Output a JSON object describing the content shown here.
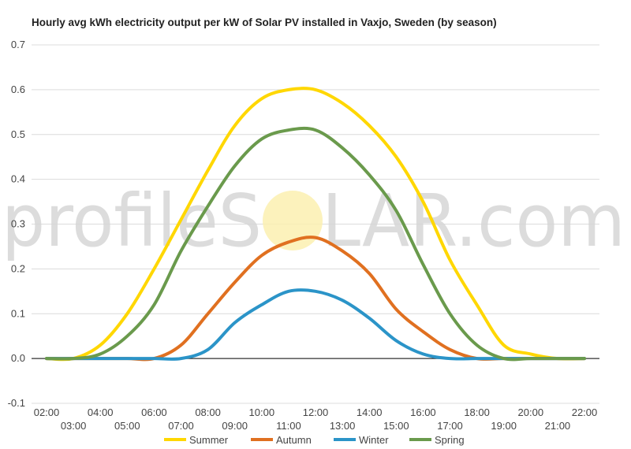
{
  "watermark": {
    "part1": "profileS",
    "part2": "LAR.com"
  },
  "chart_data": {
    "type": "line",
    "title": "Hourly avg kWh electricity output per kW of Solar PV installed in Vaxjo, Sweden (by season)",
    "xlabel": "",
    "ylabel": "",
    "ylim": [
      -0.1,
      0.7
    ],
    "yticks": [
      -0.1,
      0.0,
      0.1,
      0.2,
      0.3,
      0.4,
      0.5,
      0.6,
      0.7
    ],
    "grid": true,
    "legend": "bottom",
    "x": [
      "02:00",
      "03:00",
      "04:00",
      "05:00",
      "06:00",
      "07:00",
      "08:00",
      "09:00",
      "10:00",
      "11:00",
      "12:00",
      "13:00",
      "14:00",
      "15:00",
      "16:00",
      "17:00",
      "18:00",
      "19:00",
      "20:00",
      "21:00",
      "22:00"
    ],
    "series": [
      {
        "name": "Summer",
        "color": "#FFD700",
        "values": [
          0.0,
          0.0,
          0.03,
          0.1,
          0.2,
          0.31,
          0.42,
          0.52,
          0.58,
          0.6,
          0.6,
          0.57,
          0.52,
          0.45,
          0.35,
          0.22,
          0.12,
          0.03,
          0.01,
          0.0,
          0.0
        ]
      },
      {
        "name": "Autumn",
        "color": "#E07020",
        "values": [
          0.0,
          0.0,
          0.0,
          0.0,
          0.0,
          0.03,
          0.1,
          0.17,
          0.23,
          0.26,
          0.27,
          0.24,
          0.19,
          0.11,
          0.06,
          0.02,
          0.0,
          0.0,
          0.0,
          0.0,
          0.0
        ]
      },
      {
        "name": "Winter",
        "color": "#2B94C8",
        "values": [
          0.0,
          0.0,
          0.0,
          0.0,
          0.0,
          0.0,
          0.02,
          0.08,
          0.12,
          0.15,
          0.15,
          0.13,
          0.09,
          0.04,
          0.01,
          0.0,
          0.0,
          0.0,
          0.0,
          0.0,
          0.0
        ]
      },
      {
        "name": "Spring",
        "color": "#6A9A4C",
        "values": [
          0.0,
          0.0,
          0.01,
          0.05,
          0.12,
          0.24,
          0.34,
          0.43,
          0.49,
          0.51,
          0.51,
          0.47,
          0.41,
          0.33,
          0.21,
          0.1,
          0.03,
          0.0,
          0.0,
          0.0,
          0.0
        ]
      }
    ]
  }
}
